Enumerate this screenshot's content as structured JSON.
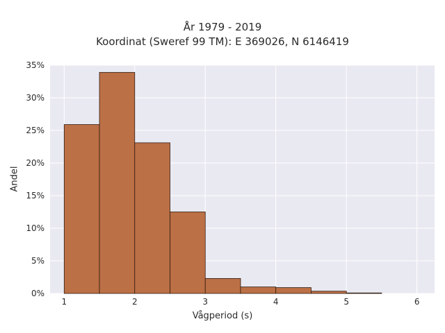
{
  "chart_data": {
    "type": "bar",
    "title_line1": "År 1979 - 2019",
    "title_line2": "Koordinat (Sweref 99 TM): E 369026, N 6146419",
    "xlabel": "Vågperiod (s)",
    "ylabel": "Andel",
    "bins": [
      {
        "x0": 1.0,
        "x1": 1.5,
        "value": 25.9
      },
      {
        "x0": 1.5,
        "x1": 2.0,
        "value": 33.9
      },
      {
        "x0": 2.0,
        "x1": 2.5,
        "value": 23.1
      },
      {
        "x0": 2.5,
        "x1": 3.0,
        "value": 12.5
      },
      {
        "x0": 3.0,
        "x1": 3.5,
        "value": 2.3
      },
      {
        "x0": 3.5,
        "x1": 4.0,
        "value": 1.0
      },
      {
        "x0": 4.0,
        "x1": 4.5,
        "value": 0.9
      },
      {
        "x0": 4.5,
        "x1": 5.0,
        "value": 0.35
      },
      {
        "x0": 5.0,
        "x1": 5.5,
        "value": 0.08
      }
    ],
    "x_ticks": [
      "1",
      "2",
      "3",
      "4",
      "5",
      "6"
    ],
    "y_ticks": [
      "0%",
      "5%",
      "10%",
      "15%",
      "20%",
      "25%",
      "30%",
      "35%"
    ],
    "xlim": [
      0.8,
      6.25
    ],
    "ylim": [
      0,
      35
    ],
    "grid": true,
    "legend": "none",
    "colors": {
      "bar_fill": "#b9693c",
      "bar_edge": "#2e1b10",
      "plot_bg": "#e9e9f2",
      "grid": "#ffffff"
    }
  }
}
